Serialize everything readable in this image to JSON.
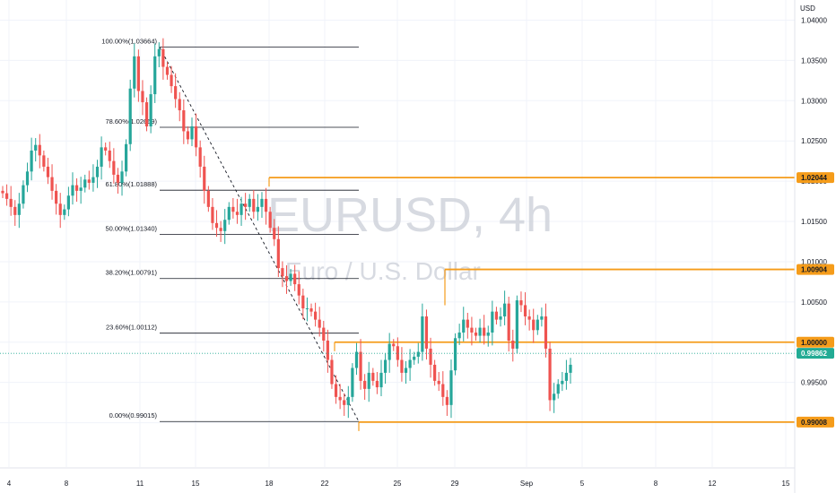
{
  "watermark": {
    "symbol": "EURUSD, 4h",
    "description": "Euro / U.S. Dollar"
  },
  "axis": {
    "currency": "USD",
    "y_ticks": [
      "1.04000",
      "1.03500",
      "1.03000",
      "1.02500",
      "1.02000",
      "1.01500",
      "1.01000",
      "1.00500",
      "1.00000",
      "0.99500",
      "0.99000"
    ],
    "x_ticks": [
      "4",
      "8",
      "11",
      "15",
      "18",
      "22",
      "25",
      "29",
      "Sep",
      "5",
      "8",
      "12",
      "15"
    ]
  },
  "colors": {
    "up": "#26a69a",
    "down": "#ef5350",
    "level": "#f59c1a",
    "current": "#22ab94",
    "fib_line": "#131722",
    "grid": "#f0f3fa"
  },
  "fib_levels": [
    {
      "label": "100.00%(1.03664)"
    },
    {
      "label": "78.60%(1.02669)"
    },
    {
      "label": "61.80%(1.01888)"
    },
    {
      "label": "50.00%(1.01340)"
    },
    {
      "label": "38.20%(1.00791)"
    },
    {
      "label": "23.60%(1.00112)"
    },
    {
      "label": "0.00%(0.99015)"
    }
  ],
  "levels": [
    {
      "price": "1.02044"
    },
    {
      "price": "1.00904"
    },
    {
      "price": "1.00000"
    },
    {
      "price": "0.99008"
    }
  ],
  "current_price": "0.99862",
  "chart_data": {
    "type": "candlestick",
    "symbol": "EURUSD",
    "timeframe": "4h",
    "y_range": [
      0.9845,
      1.0425
    ],
    "x_labels": [
      "4",
      "8",
      "11",
      "15",
      "18",
      "22",
      "25",
      "29",
      "Sep",
      "5",
      "8",
      "12",
      "15"
    ],
    "fibonacci": [
      {
        "ratio": "100.00%",
        "price": 1.03664
      },
      {
        "ratio": "78.60%",
        "price": 1.02669
      },
      {
        "ratio": "61.80%",
        "price": 1.01888
      },
      {
        "ratio": "50.00%",
        "price": 1.0134
      },
      {
        "ratio": "38.20%",
        "price": 1.00791
      },
      {
        "ratio": "23.60%",
        "price": 1.00112
      },
      {
        "ratio": "0.00%",
        "price": 0.99015
      }
    ],
    "horizontal_levels": [
      1.02044,
      1.00904,
      1.0,
      0.99008
    ],
    "current_price": 0.99862,
    "closes": [
      1.0185,
      1.0178,
      1.0168,
      1.0158,
      1.0172,
      1.0195,
      1.0212,
      1.0238,
      1.0245,
      1.0232,
      1.0218,
      1.0205,
      1.0188,
      1.0172,
      1.0158,
      1.0165,
      1.0182,
      1.0195,
      1.0188,
      1.0192,
      1.0202,
      1.0198,
      1.0205,
      1.0218,
      1.0242,
      1.0238,
      1.0225,
      1.0208,
      1.0198,
      1.0212,
      1.0246,
      1.0315,
      1.0355,
      1.0312,
      1.0298,
      1.0268,
      1.0308,
      1.0355,
      1.0364,
      1.0342,
      1.0332,
      1.0318,
      1.0302,
      1.0288,
      1.0262,
      1.0252,
      1.0268,
      1.0242,
      1.0218,
      1.0188,
      1.0168,
      1.0148,
      1.0142,
      1.0138,
      1.0152,
      1.0168,
      1.0162,
      1.0158,
      1.0172,
      1.0168,
      1.0178,
      1.0162,
      1.0168,
      1.0178,
      1.0162,
      1.0142,
      1.0128,
      1.0092,
      1.0082,
      1.0076,
      1.0085,
      1.0072,
      1.0058,
      1.0042,
      1.0042,
      1.0038,
      1.0028,
      1.0018,
      1.0002,
      0.9978,
      0.9948,
      0.9932,
      0.9928,
      0.9922,
      0.9932,
      0.9968,
      0.9988,
      0.9952,
      0.9942,
      0.9962,
      0.9952,
      0.9944,
      0.9962,
      0.9978,
      0.9998,
      0.9995,
      0.9978,
      0.9962,
      0.9968,
      0.9978,
      0.9982,
      0.9988,
      1.0032,
      0.9992,
      0.9972,
      0.9952,
      0.9948,
      0.9932,
      0.9922,
      0.9965,
      1.0005,
      1.0012,
      1.0028,
      1.0018,
      1.0012,
      1.0008,
      1.0018,
      1.0008,
      1.0012,
      1.0038,
      1.0028,
      1.0032,
      1.0048,
      1.0002,
      0.9992,
      1.0052,
      1.0046,
      1.0032,
      1.0028,
      1.0015,
      1.0028,
      1.0032,
      0.9992,
      0.9928,
      0.9936,
      0.9948,
      0.9952,
      0.9962,
      0.9972
    ]
  }
}
